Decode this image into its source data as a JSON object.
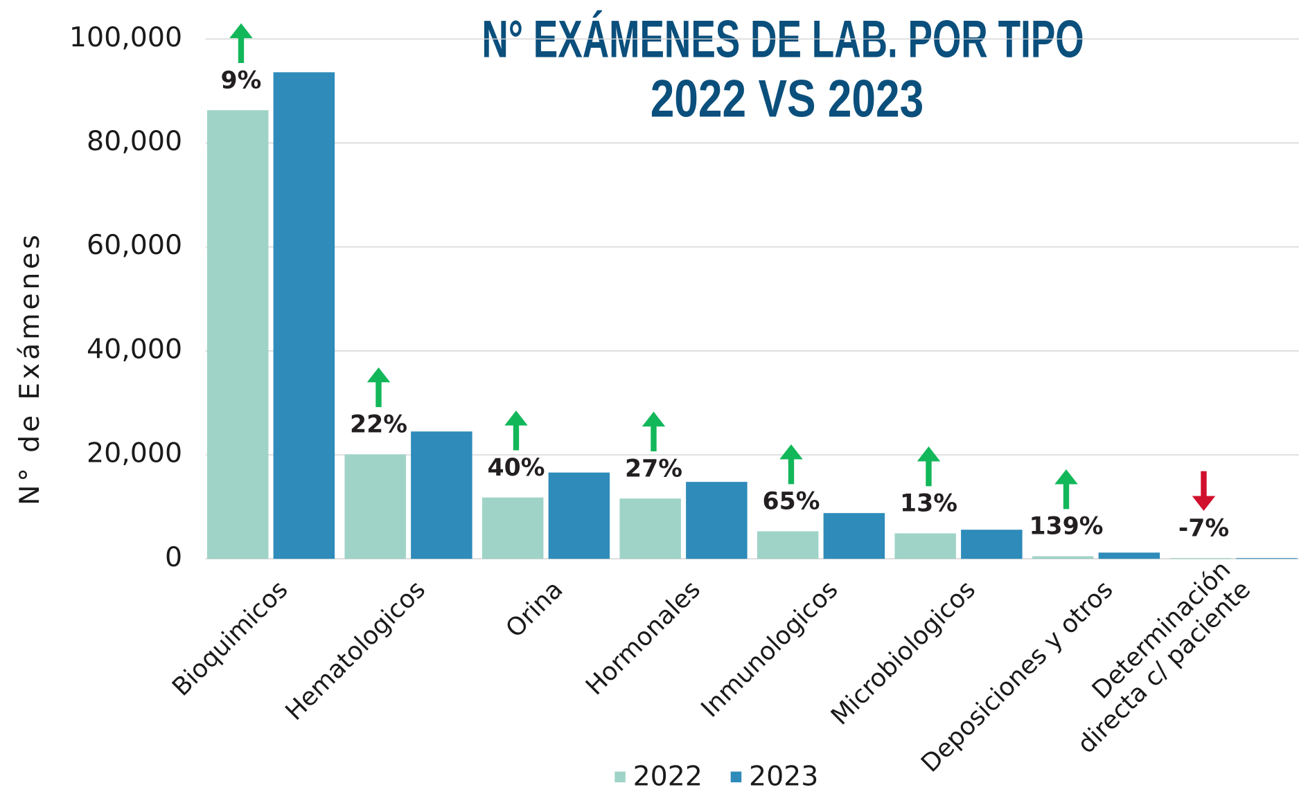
{
  "chart_data": {
    "type": "bar",
    "title": "N° EXÁMENES DE LAB. POR TIPO",
    "subtitle": "2022 VS 2023",
    "y_label": "N° de Exámenes",
    "categories": [
      "Bioquimicos",
      "Hematologicos",
      "Orina",
      "Hormonales",
      "Inmunologicos",
      "Microbiologicos",
      "Deposiciones y otros",
      "Determinación directa c/ paciente"
    ],
    "series": [
      {
        "name": "2022",
        "color": "#9fd3c7",
        "values": [
          86300,
          20100,
          11800,
          11600,
          5300,
          4900,
          500,
          150
        ]
      },
      {
        "name": "2023",
        "color": "#2e8bba",
        "values": [
          93600,
          24500,
          16600,
          14800,
          8800,
          5600,
          1200,
          140
        ]
      }
    ],
    "changes": {
      "values": [
        9,
        22,
        40,
        27,
        65,
        13,
        139,
        -7
      ],
      "value_labels": [
        "9%",
        "22%",
        "40%",
        "27%",
        "65%",
        "13%",
        "139%",
        "-7%"
      ],
      "up_color": "#12b75a",
      "down_color": "#d0102c"
    },
    "ylim": [
      0,
      100000
    ],
    "yticks": [
      0,
      {
        "value": 20000,
        "label": "20,000"
      },
      {
        "value": 40000,
        "label": "40,000"
      },
      {
        "value": 60000,
        "label": "60,000"
      },
      {
        "value": 80000,
        "label": "80,000"
      },
      {
        "value": 100000,
        "label": "100,000"
      }
    ],
    "grid": true,
    "legend": "bottom"
  }
}
